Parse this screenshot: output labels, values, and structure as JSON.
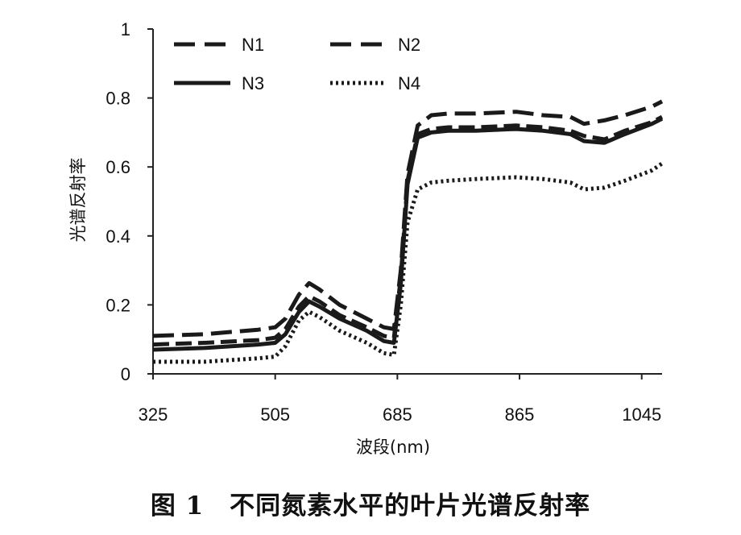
{
  "caption": "图 1　不同氮素水平的叶片光谱反射率",
  "chart_data": {
    "type": "line",
    "xlabel": "波段(nm)",
    "ylabel": "光谱反射率",
    "xlim": [
      325,
      1075
    ],
    "ylim": [
      0,
      1
    ],
    "xticks": [
      325,
      505,
      685,
      865,
      1045
    ],
    "yticks": [
      0,
      0.2,
      0.4,
      0.6,
      0.8,
      1
    ],
    "ytick_labels": [
      "0",
      "0.2",
      "0.4",
      "0.6",
      "0.8",
      "1"
    ],
    "grid": false,
    "legend_position": "top",
    "x": [
      325,
      400,
      480,
      505,
      520,
      540,
      555,
      570,
      600,
      640,
      665,
      680,
      690,
      700,
      715,
      735,
      760,
      800,
      860,
      900,
      940,
      960,
      990,
      1020,
      1060,
      1075
    ],
    "series": [
      {
        "name": "N1",
        "style": "long-dash",
        "values": [
          0.11,
          0.115,
          0.128,
          0.135,
          0.16,
          0.23,
          0.263,
          0.245,
          0.2,
          0.16,
          0.135,
          0.13,
          0.3,
          0.58,
          0.72,
          0.75,
          0.755,
          0.755,
          0.76,
          0.75,
          0.745,
          0.725,
          0.735,
          0.75,
          0.775,
          0.79
        ]
      },
      {
        "name": "N2",
        "style": "dash",
        "values": [
          0.085,
          0.09,
          0.098,
          0.105,
          0.13,
          0.195,
          0.225,
          0.21,
          0.17,
          0.135,
          0.11,
          0.105,
          0.28,
          0.56,
          0.695,
          0.71,
          0.715,
          0.715,
          0.72,
          0.715,
          0.705,
          0.69,
          0.68,
          0.705,
          0.73,
          0.745
        ]
      },
      {
        "name": "N3",
        "style": "solid",
        "values": [
          0.07,
          0.075,
          0.085,
          0.09,
          0.115,
          0.18,
          0.21,
          0.195,
          0.16,
          0.125,
          0.095,
          0.09,
          0.26,
          0.55,
          0.685,
          0.7,
          0.705,
          0.705,
          0.71,
          0.705,
          0.695,
          0.675,
          0.67,
          0.695,
          0.725,
          0.74
        ]
      },
      {
        "name": "N4",
        "style": "dotted",
        "values": [
          0.035,
          0.035,
          0.045,
          0.05,
          0.08,
          0.155,
          0.18,
          0.165,
          0.125,
          0.09,
          0.06,
          0.055,
          0.2,
          0.44,
          0.535,
          0.555,
          0.56,
          0.565,
          0.57,
          0.565,
          0.555,
          0.535,
          0.54,
          0.56,
          0.59,
          0.61
        ]
      }
    ]
  }
}
